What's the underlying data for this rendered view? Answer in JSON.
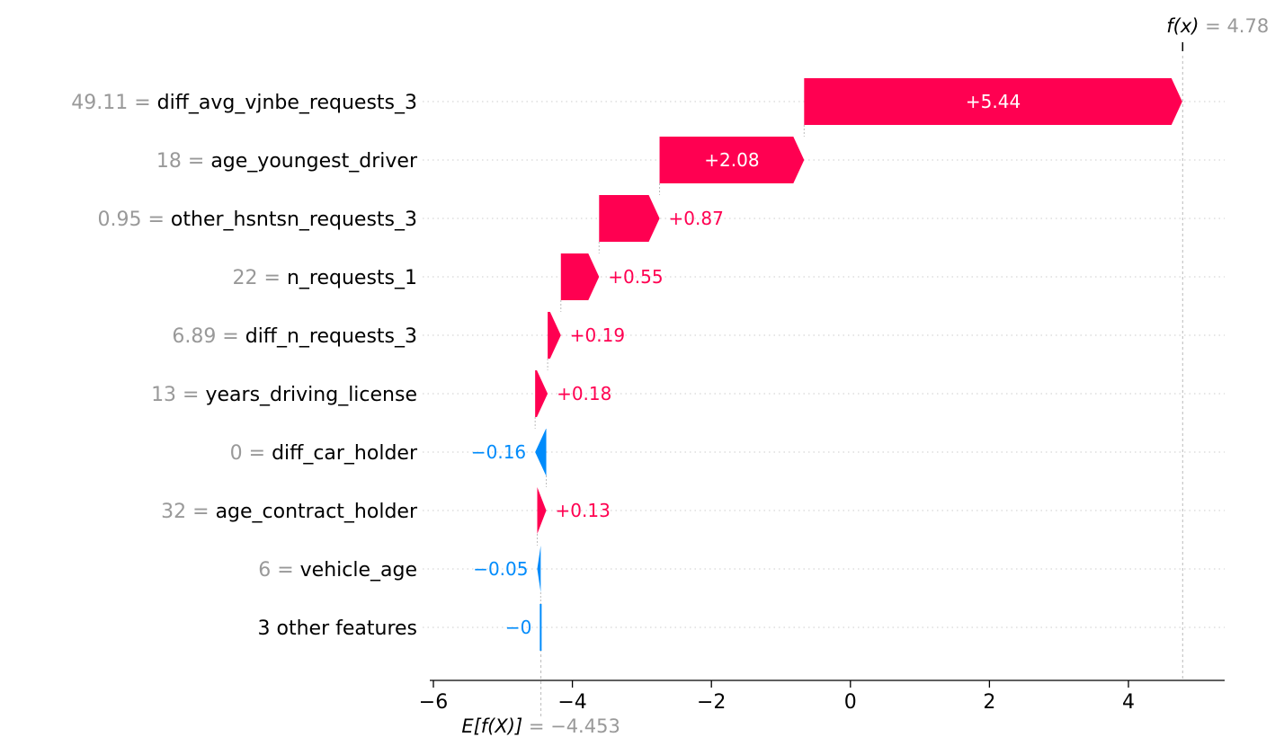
{
  "chart_data": {
    "type": "waterfall",
    "base_value": -4.453,
    "base_value_label": "−4.453",
    "final_value": 4.78,
    "final_value_label": "4.78",
    "fx_symbol": "f(x)",
    "ex_symbol": "E[f(X)]",
    "xlim": [
      -6.2,
      5.4
    ],
    "xticks": [
      -6,
      -4,
      -2,
      0,
      2,
      4
    ],
    "xtick_labels": [
      "−6",
      "−4",
      "−2",
      "0",
      "2",
      "4"
    ],
    "grid": "dotted horizontal per row",
    "colors": {
      "positive": "#ff0051",
      "negative": "#008bfb",
      "muted": "#999999",
      "axis": "#000000"
    },
    "features": [
      {
        "value": "49.11",
        "name": "diff_avg_vjnbe_requests_3",
        "contribution": 5.44,
        "label": "+5.44"
      },
      {
        "value": "18",
        "name": "age_youngest_driver",
        "contribution": 2.08,
        "label": "+2.08"
      },
      {
        "value": "0.95",
        "name": "other_hsntsn_requests_3",
        "contribution": 0.87,
        "label": "+0.87"
      },
      {
        "value": "22",
        "name": "n_requests_1",
        "contribution": 0.55,
        "label": "+0.55"
      },
      {
        "value": "6.89",
        "name": "diff_n_requests_3",
        "contribution": 0.19,
        "label": "+0.19"
      },
      {
        "value": "13",
        "name": "years_driving_license",
        "contribution": 0.18,
        "label": "+0.18"
      },
      {
        "value": "0",
        "name": "diff_car_holder",
        "contribution": -0.16,
        "label": "−0.16"
      },
      {
        "value": "32",
        "name": "age_contract_holder",
        "contribution": 0.13,
        "label": "+0.13"
      },
      {
        "value": "6",
        "name": "vehicle_age",
        "contribution": -0.05,
        "label": "−0.05"
      },
      {
        "value": "",
        "name": "3 other features",
        "contribution": -0.003,
        "label": "−0"
      }
    ]
  }
}
